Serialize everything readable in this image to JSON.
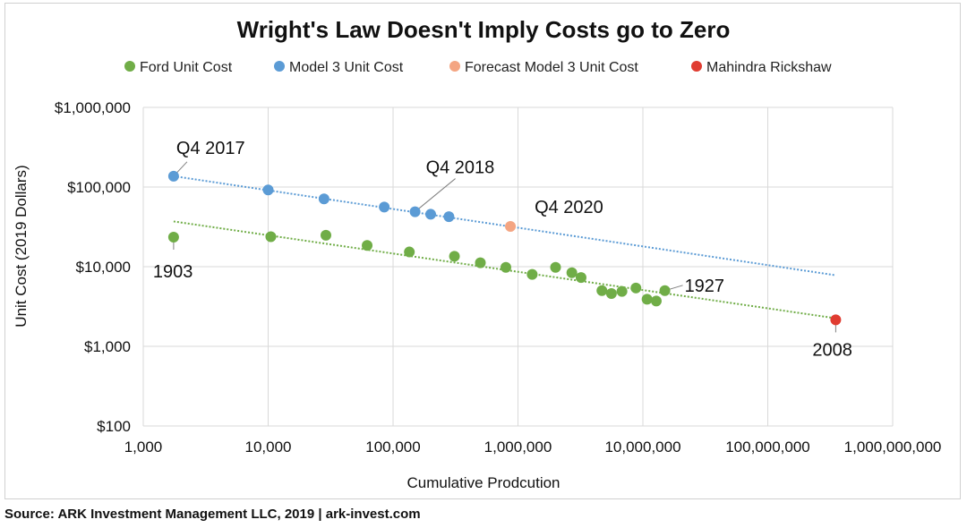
{
  "chart_data": {
    "type": "scatter",
    "title": "Wright's Law Doesn't Imply Costs go to Zero",
    "xlabel": "Cumulative Prodcution",
    "ylabel": "Unit Cost (2019 Dollars)",
    "x_scale": "log",
    "y_scale": "log",
    "xlim": [
      1000,
      1000000000
    ],
    "ylim": [
      100,
      1000000
    ],
    "x_ticks": [
      1000,
      10000,
      100000,
      1000000,
      10000000,
      100000000,
      1000000000
    ],
    "x_tick_labels": [
      "1,000",
      "10,000",
      "100,000",
      "1,000,000",
      "10,000,000",
      "100,000,000",
      "1,000,000,000"
    ],
    "y_ticks": [
      100,
      1000,
      10000,
      100000,
      1000000
    ],
    "y_tick_labels": [
      "$100",
      "$1,000",
      "$10,000",
      "$100,000",
      "$1,000,000"
    ],
    "grid": true,
    "legend_position": "top",
    "series": [
      {
        "name": "Ford Unit Cost",
        "color": "#70ad47",
        "points": [
          [
            1750,
            23500
          ],
          [
            10500,
            23800
          ],
          [
            29000,
            24800
          ],
          [
            62000,
            18500
          ],
          [
            135000,
            15300
          ],
          [
            310000,
            13500
          ],
          [
            500000,
            11200
          ],
          [
            800000,
            9800
          ],
          [
            1300000,
            8000
          ],
          [
            2000000,
            9800
          ],
          [
            2700000,
            8400
          ],
          [
            3200000,
            7300
          ],
          [
            4700000,
            5000
          ],
          [
            5600000,
            4600
          ],
          [
            6800000,
            4900
          ],
          [
            8800000,
            5400
          ],
          [
            10800000,
            3900
          ],
          [
            12800000,
            3700
          ],
          [
            15000000,
            5000
          ]
        ],
        "trendline": {
          "start": [
            1750,
            37000
          ],
          "end": [
            350000000,
            2250
          ]
        }
      },
      {
        "name": "Model 3 Unit Cost",
        "color": "#5b9bd5",
        "points": [
          [
            1750,
            137000
          ],
          [
            10000,
            92000
          ],
          [
            28000,
            71000
          ],
          [
            85000,
            56000
          ],
          [
            150000,
            49000
          ],
          [
            200000,
            45500
          ],
          [
            280000,
            42500
          ]
        ],
        "trendline": {
          "start": [
            1750,
            137000
          ],
          "end": [
            350000000,
            7800
          ]
        }
      },
      {
        "name": "Forecast Model 3 Unit Cost",
        "color": "#f4a582",
        "points": [
          [
            870000,
            32000
          ]
        ]
      },
      {
        "name": "Mahindra Rickshaw",
        "color": "#e03c31",
        "points": [
          [
            350000000,
            2150
          ]
        ]
      }
    ],
    "annotations": [
      {
        "text": "Q4 2017",
        "x": 1750,
        "y": 137000
      },
      {
        "text": "Q4 2018",
        "x": 150000,
        "y": 49000
      },
      {
        "text": "Q4 2020",
        "x": 870000,
        "y": 32000
      },
      {
        "text": "1903",
        "x": 1750,
        "y": 23500
      },
      {
        "text": "1927",
        "x": 15000000,
        "y": 5000
      },
      {
        "text": "2008",
        "x": 350000000,
        "y": 2150
      }
    ]
  },
  "source": "Source: ARK Investment Management LLC, 2019  |  ark-invest.com"
}
